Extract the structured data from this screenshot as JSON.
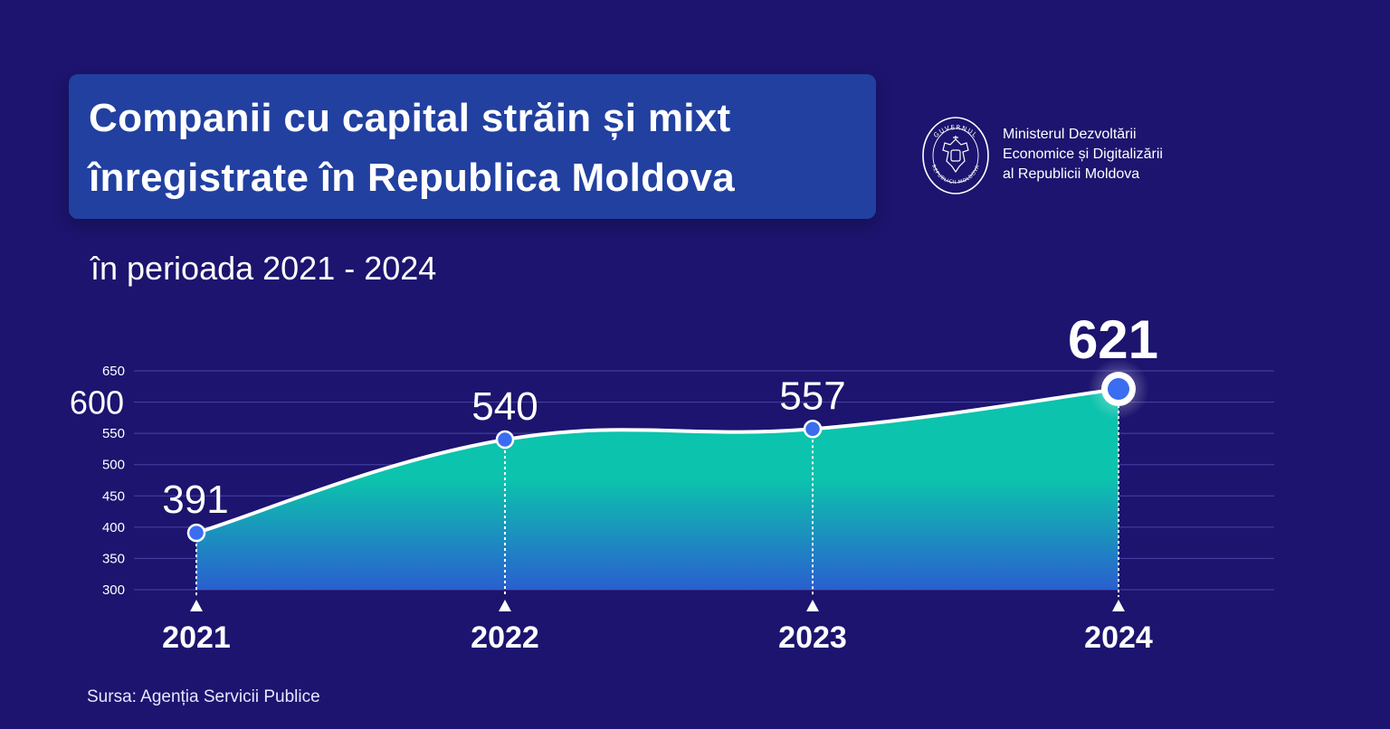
{
  "header": {
    "title_line1": "Companii cu capital străin și mixt",
    "title_line2": "înregistrate în Republica Moldova",
    "subtitle": "în perioada 2021 - 2024"
  },
  "ministry": {
    "emblem_icon": "moldova-government-seal-icon",
    "emblem_top_text": "GUVERNUL",
    "emblem_bottom_text": "REPUBLICII MOLDOVA",
    "line1": "Ministerul Dezvoltării",
    "line2": "Economice și Digitalizării",
    "line3": "al Republicii Moldova"
  },
  "source": "Sursa: Agenția Servicii Publice",
  "colors": {
    "background": "#1c146e",
    "title_box": "#2140a0",
    "area_top": "#0cc3ad",
    "area_bottom": "#2a5fcf",
    "point_fill": "#3a6df0",
    "line": "#ffffff"
  },
  "chart_data": {
    "type": "area",
    "x": [
      "2021",
      "2022",
      "2023",
      "2024"
    ],
    "values": [
      391,
      540,
      557,
      621
    ],
    "data_labels": [
      "391",
      "540",
      "557",
      "621"
    ],
    "yticks": [
      "300",
      "350",
      "400",
      "450",
      "500",
      "550",
      "600",
      "650"
    ],
    "ylim": [
      300,
      650
    ],
    "highlighted_tick": "600",
    "highlighted_point": "2024",
    "grid": true,
    "legend": "none"
  }
}
